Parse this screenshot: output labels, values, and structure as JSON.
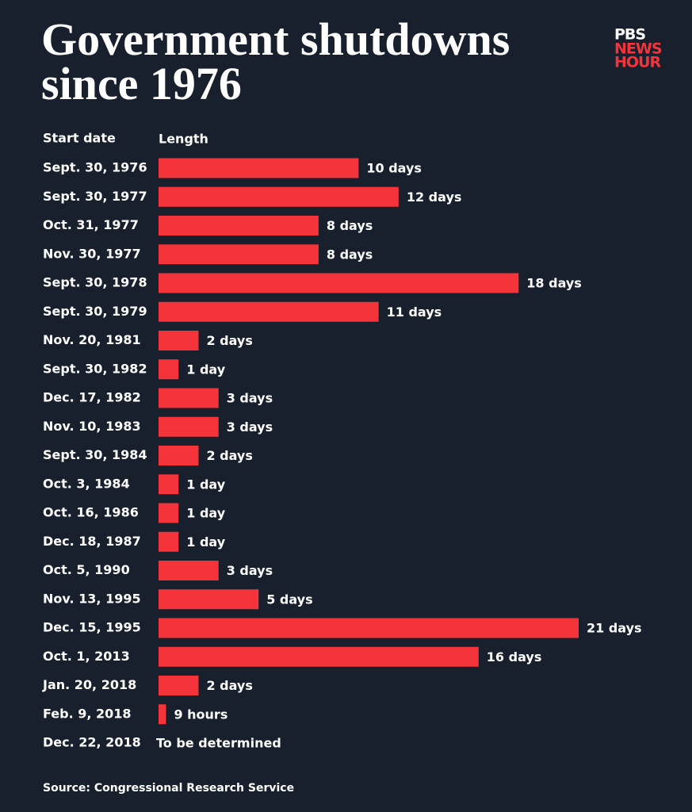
{
  "chart_data": {
    "type": "bar",
    "orientation": "horizontal",
    "title": "Government shutdowns since 1976",
    "category_header": "Start date",
    "value_header": "Length",
    "categories": [
      "Sept. 30, 1976",
      "Sept. 30, 1977",
      "Oct. 31, 1977",
      "Nov. 30, 1977",
      "Sept. 30, 1978",
      "Sept. 30, 1979",
      "Nov. 20, 1981",
      "Sept. 30, 1982",
      "Dec. 17, 1982",
      "Nov. 10, 1983",
      "Sept. 30, 1984",
      "Oct. 3, 1984",
      "Oct. 16, 1986",
      "Dec. 18, 1987",
      "Oct. 5, 1990",
      "Nov. 13, 1995",
      "Dec. 15, 1995",
      "Oct. 1, 2013",
      "Jan. 20, 2018",
      "Feb. 9, 2018",
      "Dec. 22, 2018"
    ],
    "values": [
      10,
      12,
      8,
      8,
      18,
      11,
      2,
      1,
      3,
      3,
      2,
      1,
      1,
      1,
      3,
      5,
      21,
      16,
      2,
      0.375,
      null
    ],
    "value_labels": [
      "10 days",
      "12 days",
      "8 days",
      "8 days",
      "18 days",
      "11 days",
      "2 days",
      "1 day",
      "3 days",
      "3 days",
      "2 days",
      "1 day",
      "1 day",
      "1 day",
      "3 days",
      "5 days",
      "21 days",
      "16 days",
      "2 days",
      "9 hours",
      "To be determined"
    ],
    "color": "#f4333a",
    "source": "Source: Congressional Research Service",
    "logo": {
      "line1": "PBS",
      "line2": "NEWS",
      "line3": "HOUR"
    }
  }
}
